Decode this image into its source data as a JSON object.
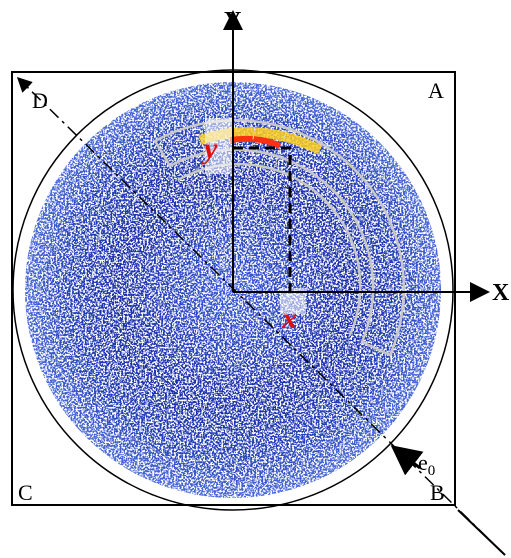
{
  "axes": {
    "y": "Y",
    "x": "X"
  },
  "corners": {
    "a": "A",
    "b": "B",
    "c": "C",
    "d": "D"
  },
  "markers": {
    "y": "y",
    "x": "x"
  },
  "beam": {
    "symbol": "e",
    "subscript": "0"
  }
}
